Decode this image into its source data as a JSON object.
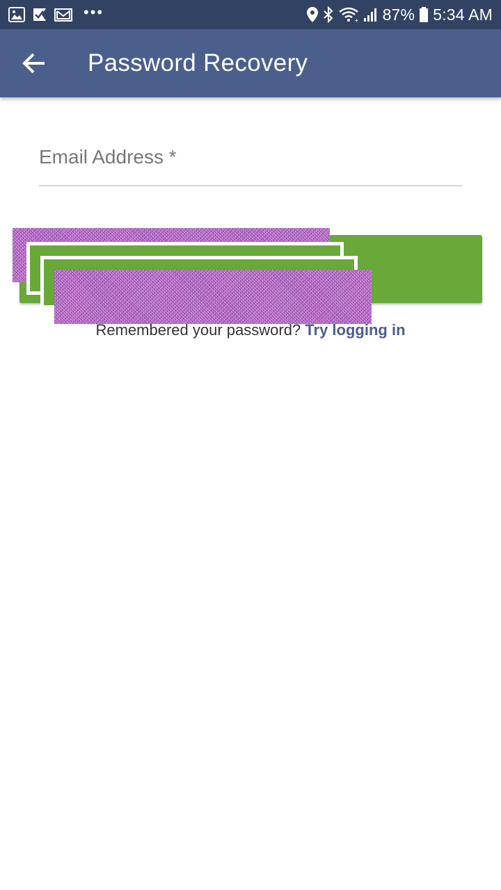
{
  "status_bar": {
    "battery": "87%",
    "time": "5:34 AM",
    "more_indicator": "•••",
    "icons_left": [
      "image-icon",
      "checkmark-flag-icon",
      "mail-icon"
    ],
    "icons_right": [
      "location-icon",
      "bluetooth-icon",
      "wifi-icon",
      "signal-icon",
      "battery-icon"
    ]
  },
  "app_bar": {
    "title": "Password Recovery",
    "back_icon": "arrow-back-icon"
  },
  "form": {
    "email_label": "Email Address *",
    "submit_label": ""
  },
  "footer": {
    "prompt": "Remembered your password?",
    "link": "Try logging in"
  },
  "colors": {
    "status_bar": "#324262",
    "app_bar": "#4a5f8c",
    "primary_button": "#68a93a",
    "link": "#4a5f8c"
  }
}
